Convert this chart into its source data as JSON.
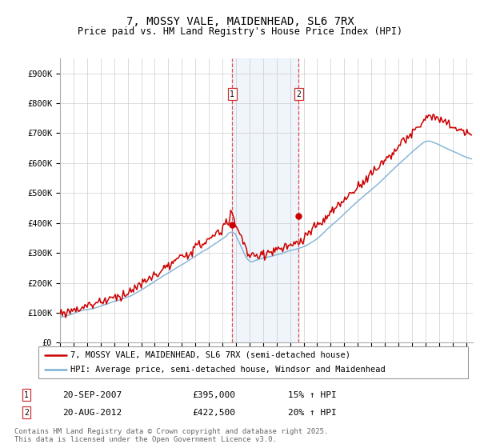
{
  "title": "7, MOSSY VALE, MAIDENHEAD, SL6 7RX",
  "subtitle": "Price paid vs. HM Land Registry's House Price Index (HPI)",
  "ylabel_ticks": [
    "£0",
    "£100K",
    "£200K",
    "£300K",
    "£400K",
    "£500K",
    "£600K",
    "£700K",
    "£800K",
    "£900K"
  ],
  "ylim": [
    0,
    950000
  ],
  "yticks": [
    0,
    100000,
    200000,
    300000,
    400000,
    500000,
    600000,
    700000,
    800000,
    900000
  ],
  "xlim_start": 1995.0,
  "xlim_end": 2025.5,
  "marker1_x": 2007.72,
  "marker1_y": 395000,
  "marker2_x": 2012.63,
  "marker2_y": 422500,
  "line1_color": "#cc0000",
  "line2_color": "#7ab0d4",
  "shade_color": "#ddeeff",
  "grid_color": "#cccccc",
  "background_color": "#ffffff",
  "legend1": "7, MOSSY VALE, MAIDENHEAD, SL6 7RX (semi-detached house)",
  "legend2": "HPI: Average price, semi-detached house, Windsor and Maidenhead",
  "marker1_date": "20-SEP-2007",
  "marker1_price": "£395,000",
  "marker1_hpi": "15% ↑ HPI",
  "marker2_date": "20-AUG-2012",
  "marker2_price": "£422,500",
  "marker2_hpi": "20% ↑ HPI",
  "footer": "Contains HM Land Registry data © Crown copyright and database right 2025.\nThis data is licensed under the Open Government Licence v3.0.",
  "title_fontsize": 10,
  "subtitle_fontsize": 8.5,
  "tick_fontsize": 7.5,
  "legend_fontsize": 7.5,
  "annot_fontsize": 8,
  "footer_fontsize": 6.5
}
